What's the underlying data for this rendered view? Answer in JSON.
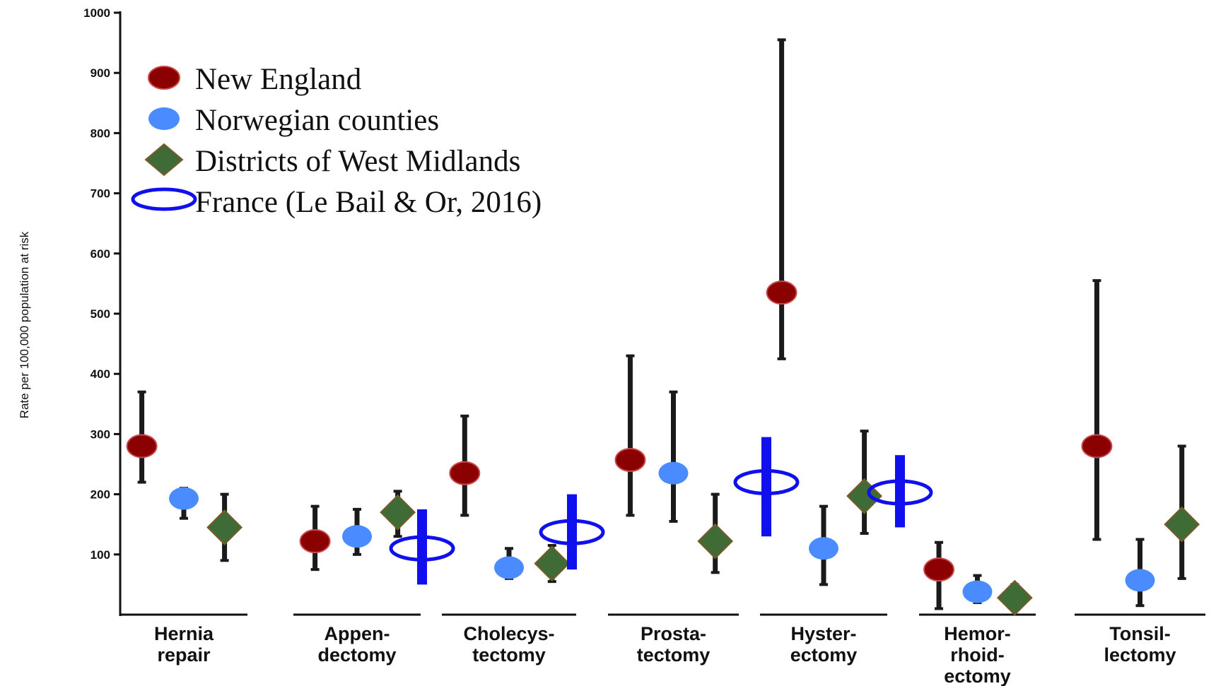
{
  "chart_data": {
    "type": "scatter",
    "ylabel": "Rate per 100,000 population at risk",
    "ylim": [
      0,
      1000
    ],
    "yticks": [
      100,
      200,
      300,
      400,
      500,
      600,
      700,
      800,
      900,
      1000
    ],
    "grid": false,
    "legend_placement": "top-left",
    "categories": [
      {
        "key": "hernia",
        "label": [
          "Hernia",
          "repair"
        ]
      },
      {
        "key": "appendectomy",
        "label": [
          "Appen-",
          "dectomy"
        ]
      },
      {
        "key": "cholecystectomy",
        "label": [
          "Cholecys-",
          "tectomy"
        ]
      },
      {
        "key": "prostatectomy",
        "label": [
          "Prosta-",
          "tectomy"
        ]
      },
      {
        "key": "hysterectomy",
        "label": [
          "Hyster-",
          "ectomy"
        ]
      },
      {
        "key": "hemorrhoidectomy",
        "label": [
          "Hemor-",
          "rhoid-",
          "ectomy"
        ]
      },
      {
        "key": "tonsillectomy",
        "label": [
          "Tonsil-",
          "lectomy"
        ]
      }
    ],
    "series": [
      {
        "name": "New England",
        "marker": "circle",
        "color": "#8b0000",
        "points": [
          {
            "category": "hernia",
            "value": 280,
            "range": [
              220,
              370
            ]
          },
          {
            "category": "appendectomy",
            "value": 122,
            "range": [
              75,
              180
            ]
          },
          {
            "category": "cholecystectomy",
            "value": 235,
            "range": [
              165,
              330
            ]
          },
          {
            "category": "prostatectomy",
            "value": 257,
            "range": [
              165,
              430
            ]
          },
          {
            "category": "hysterectomy",
            "value": 535,
            "range": [
              425,
              955
            ]
          },
          {
            "category": "hemorrhoidectomy",
            "value": 75,
            "range": [
              10,
              120
            ]
          },
          {
            "category": "tonsillectomy",
            "value": 280,
            "range": [
              125,
              555
            ]
          }
        ]
      },
      {
        "name": "Norwegian counties",
        "marker": "circle",
        "color": "#4a8cff",
        "points": [
          {
            "category": "hernia",
            "value": 193,
            "range": [
              160,
              210
            ]
          },
          {
            "category": "appendectomy",
            "value": 130,
            "range": [
              100,
              175
            ]
          },
          {
            "category": "cholecystectomy",
            "value": 78,
            "range": [
              60,
              110
            ]
          },
          {
            "category": "prostatectomy",
            "value": 235,
            "range": [
              155,
              370
            ]
          },
          {
            "category": "hysterectomy",
            "value": 110,
            "range": [
              50,
              180
            ]
          },
          {
            "category": "hemorrhoidectomy",
            "value": 38,
            "range": [
              20,
              65
            ]
          },
          {
            "category": "tonsillectomy",
            "value": 57,
            "range": [
              15,
              125
            ]
          }
        ]
      },
      {
        "name": "Districts of West Midlands",
        "marker": "diamond",
        "color": "#3f6b37",
        "points": [
          {
            "category": "hernia",
            "value": 145,
            "range": [
              90,
              200
            ]
          },
          {
            "category": "appendectomy",
            "value": 170,
            "range": [
              130,
              205
            ]
          },
          {
            "category": "cholecystectomy",
            "value": 85,
            "range": [
              55,
              115
            ]
          },
          {
            "category": "prostatectomy",
            "value": 122,
            "range": [
              70,
              200
            ]
          },
          {
            "category": "hysterectomy",
            "value": 197,
            "range": [
              135,
              305
            ]
          },
          {
            "category": "hemorrhoidectomy",
            "value": 28,
            "range": [
              10,
              50
            ]
          },
          {
            "category": "tonsillectomy",
            "value": 150,
            "range": [
              60,
              280
            ]
          }
        ]
      },
      {
        "name": "France (Le Bail & Or, 2016)",
        "marker": "ring",
        "color": "#1010ee",
        "points": [
          {
            "category": "appendectomy",
            "value": 110,
            "range": [
              50,
              175
            ]
          },
          {
            "category": "cholecystectomy",
            "value": 137,
            "range": [
              75,
              200
            ]
          },
          {
            "category": "hysterectomy",
            "value": 220,
            "range": [
              130,
              295
            ]
          },
          {
            "category": "hysterectomy",
            "value": 203,
            "range": [
              145,
              265
            ],
            "slot": 1
          }
        ]
      }
    ]
  }
}
